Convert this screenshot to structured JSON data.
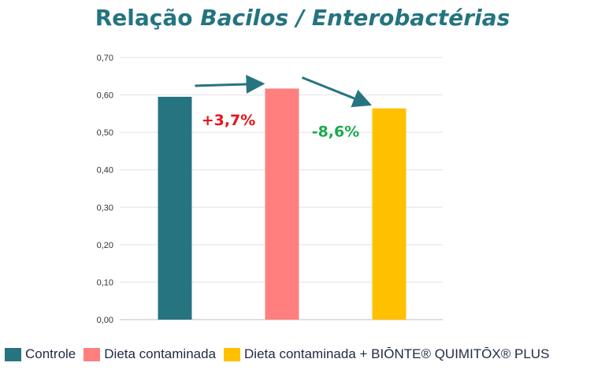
{
  "chart_data": {
    "type": "bar",
    "title": {
      "prefix": "Relação",
      "emphasis": "Bacilos / Enterobactérias"
    },
    "xlabel": "",
    "ylabel": "",
    "ylim": [
      0,
      0.7
    ],
    "yticks": [
      0.0,
      0.1,
      0.2,
      0.3,
      0.4,
      0.5,
      0.6,
      0.7
    ],
    "ytick_labels": [
      "0,00",
      "0,10",
      "0,20",
      "0,30",
      "0,40",
      "0,50",
      "0,60",
      "0,70"
    ],
    "grid": true,
    "legend_position": "bottom",
    "categories": [
      "Controle",
      "Dieta contaminada",
      "Dieta contaminada + BIŌNTE® QUIMITŌX® PLUS"
    ],
    "values": [
      0.595,
      0.617,
      0.564
    ],
    "colors": [
      "#267480",
      "#FF7F7F",
      "#FFC000"
    ],
    "annotations": [
      {
        "text": "+3,7%",
        "color": "#E8141B",
        "from": 0,
        "to": 1
      },
      {
        "text": "-8,6%",
        "color": "#1DAA4E",
        "from": 1,
        "to": 2
      }
    ],
    "arrow_color": "#267480",
    "title_color": "#237480"
  }
}
